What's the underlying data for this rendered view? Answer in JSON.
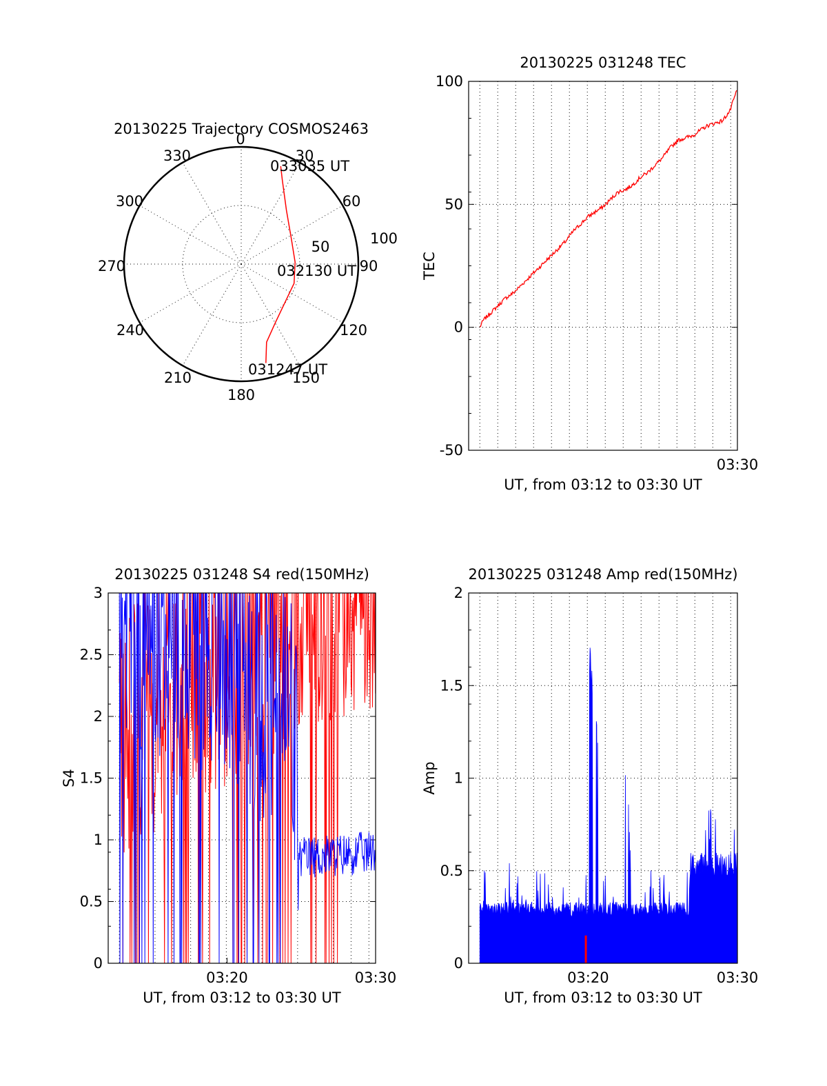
{
  "chart_data": [
    {
      "type": "polar-trajectory",
      "title": "20130225 Trajectory COSMOS2463",
      "angle_labels": [
        "0",
        "30",
        "60",
        "90",
        "120",
        "150",
        "180",
        "210",
        "240",
        "270",
        "300",
        "330"
      ],
      "radius_labels": [
        "50",
        "100"
      ],
      "rlim": [
        0,
        100
      ],
      "series": [
        {
          "color": "#ff0000",
          "points": [
            {
              "az": 166,
              "elev": 13
            },
            {
              "az": 162,
              "elev": 30
            },
            {
              "az": 150,
              "elev": 42
            },
            {
              "az": 110,
              "elev": 52
            },
            {
              "az": 88,
              "elev": 54
            },
            {
              "az": 63,
              "elev": 52
            },
            {
              "az": 40,
              "elev": 40
            },
            {
              "az": 26,
              "elev": 20
            },
            {
              "az": 22,
              "elev": 10
            }
          ]
        }
      ],
      "annotations": [
        "033035 UT",
        "032130 UT",
        "031247 UT"
      ]
    },
    {
      "type": "line",
      "title": "20130225 031248 TEC",
      "xlabel": "UT, from 03:12 to 03:30 UT",
      "ylabel": "TEC",
      "xlim": [
        0,
        18
      ],
      "ylim": [
        -50,
        100
      ],
      "yticks": [
        "100",
        "50",
        "0",
        "-50"
      ],
      "xticks": [
        {
          "at": 18,
          "label": "03:30"
        }
      ],
      "grid": true,
      "series": [
        {
          "color": "#ff0000",
          "x": [
            0.75,
            1,
            1.5,
            2,
            2.5,
            3,
            3.5,
            4,
            4.5,
            5,
            5.5,
            6,
            6.5,
            7,
            7.5,
            8,
            8.5,
            9,
            9.5,
            10,
            10.5,
            11,
            11.5,
            12,
            12.5,
            13,
            13.5,
            14,
            14.5,
            15,
            15.5,
            16,
            16.5,
            17,
            17.5,
            18
          ],
          "y": [
            0,
            3,
            6,
            9,
            12,
            14,
            17,
            20,
            23,
            26,
            29,
            32,
            35,
            39,
            42,
            45,
            47,
            49,
            52,
            55,
            56,
            58,
            61,
            63,
            66,
            69,
            73,
            76,
            77,
            78,
            80,
            82,
            83,
            84,
            88,
            97
          ]
        }
      ]
    },
    {
      "type": "line",
      "title": "20130225 031248 S4 red(150MHz)",
      "xlabel": "UT, from 03:12 to 03:30 UT",
      "ylabel": "S4",
      "xlim": [
        0,
        18
      ],
      "ylim": [
        0,
        3
      ],
      "yticks": [
        "3",
        "2.5",
        "2",
        "1.5",
        "1",
        "0.5",
        "0"
      ],
      "xticks": [
        {
          "at": 8,
          "label": "03:20"
        },
        {
          "at": 18,
          "label": "03:30"
        }
      ],
      "grid": true,
      "series": [
        {
          "color": "#ff0000",
          "x": [
            0.75,
            13.2,
            18
          ],
          "y": [
            1.5,
            2.5,
            2.7
          ]
        },
        {
          "color": "#0000ff",
          "x": [
            0.75,
            8,
            12.3,
            12.8,
            18
          ],
          "y": [
            2.5,
            2.2,
            1.5,
            0.85,
            0.9
          ]
        }
      ]
    },
    {
      "type": "bar",
      "title": "20130225 031248 Amp red(150MHz)",
      "xlabel": "UT, from 03:12 to 03:30 UT",
      "ylabel": "Amp",
      "xlim": [
        0,
        18
      ],
      "ylim": [
        0,
        2
      ],
      "yticks": [
        "2",
        "1.5",
        "1",
        "0.5",
        "0"
      ],
      "xticks": [
        {
          "at": 8,
          "label": "03:20"
        },
        {
          "at": 18,
          "label": "03:30"
        }
      ],
      "grid": true,
      "series": [
        {
          "color": "#0000ff",
          "x": [
            0.75,
            2.5,
            5,
            7.5,
            7.9,
            8.2,
            9,
            10,
            10.4,
            11,
            12,
            14.8,
            15,
            16.5,
            18
          ],
          "y": [
            0.3,
            0.35,
            0.3,
            0.32,
            0.3,
            1.85,
            0.3,
            0.35,
            1.05,
            0.3,
            0.35,
            0.3,
            0.55,
            0.7,
            0.6
          ]
        },
        {
          "color": "#ff0000",
          "x": [
            7.85
          ],
          "y": [
            0.15
          ]
        }
      ]
    }
  ]
}
